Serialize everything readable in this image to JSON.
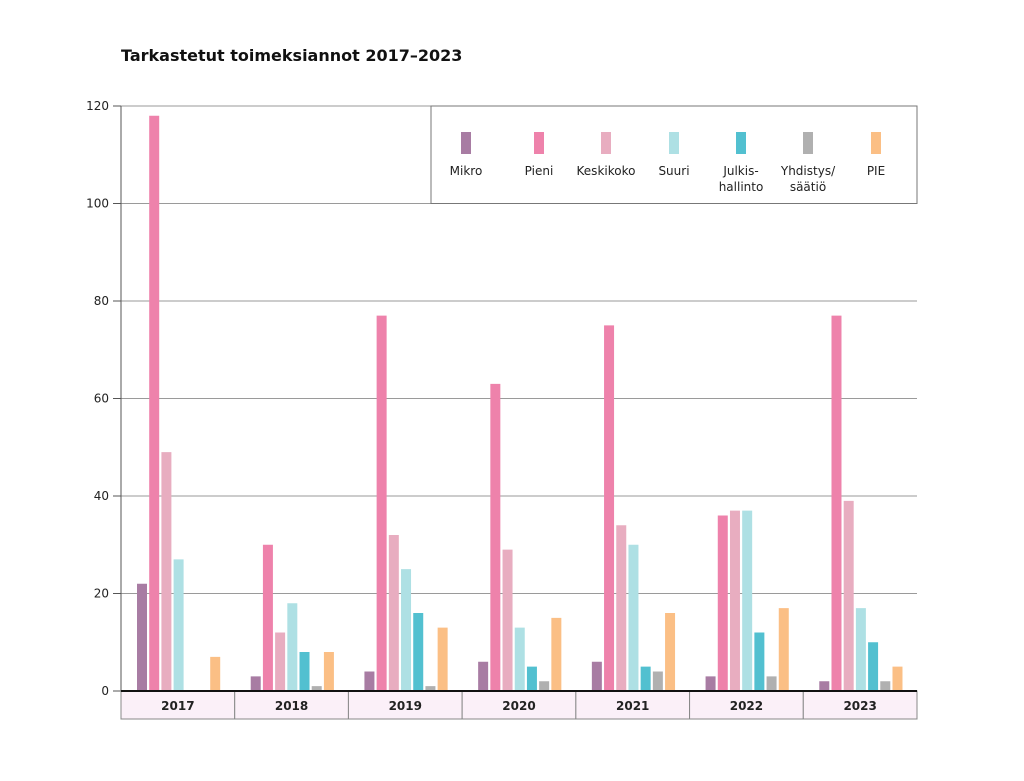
{
  "chart_data": {
    "type": "bar",
    "title": "Tarkastetut toimeksiannot 2017–2023",
    "xlabel": "",
    "ylabel": "",
    "ylim": [
      0,
      120
    ],
    "yticks": [
      0,
      20,
      40,
      60,
      80,
      100,
      120
    ],
    "grid": true,
    "legend_placement": "top-right",
    "categories": [
      "2017",
      "2018",
      "2019",
      "2020",
      "2021",
      "2022",
      "2023"
    ],
    "series": [
      {
        "name": "Mikro",
        "color": "#a87ca3",
        "values": [
          22,
          3,
          4,
          6,
          6,
          3,
          2
        ]
      },
      {
        "name": "Pieni",
        "color": "#ee82ab",
        "values": [
          118,
          30,
          77,
          63,
          75,
          36,
          77
        ]
      },
      {
        "name": "Keskikoko",
        "color": "#e8adc0",
        "values": [
          49,
          12,
          32,
          29,
          34,
          37,
          39
        ]
      },
      {
        "name": "Suuri",
        "color": "#aee0e4",
        "values": [
          27,
          18,
          25,
          13,
          30,
          37,
          17
        ]
      },
      {
        "name": "Julkis-\nhallinto",
        "color": "#52c0d0",
        "values": [
          0,
          8,
          16,
          5,
          5,
          12,
          10
        ]
      },
      {
        "name": "Yhdistys/\nsäätiö",
        "color": "#b0b0b0",
        "values": [
          0,
          1,
          1,
          2,
          4,
          3,
          2
        ]
      },
      {
        "name": "PIE",
        "color": "#fbbf85",
        "values": [
          7,
          8,
          13,
          15,
          16,
          17,
          5
        ]
      }
    ]
  }
}
